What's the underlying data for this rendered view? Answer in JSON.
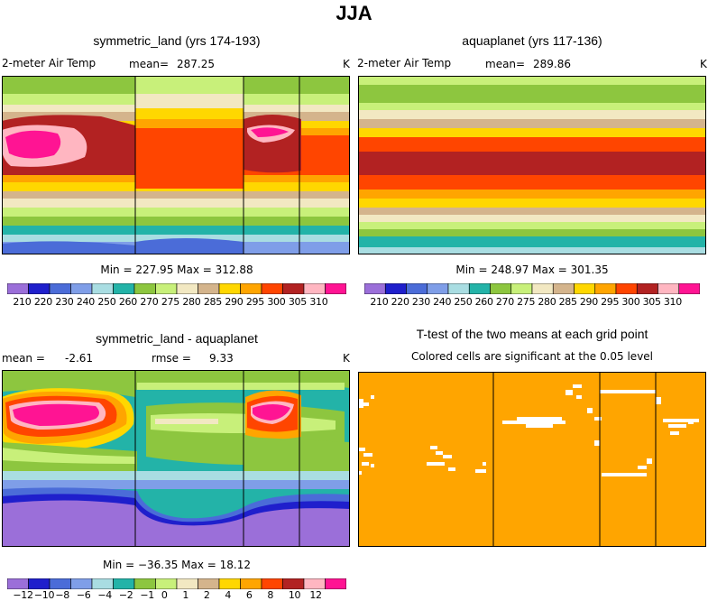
{
  "page_title": "JJA",
  "chart_data": [
    {
      "type": "heatmap",
      "title": "symmetric_land (yrs 174-193)",
      "variable_label": "2-meter Air Temp",
      "mean_label": "mean=",
      "mean_value": "287.25",
      "units": "K",
      "min_max": "Min = 227.95 Max = 312.88",
      "colorbar": {
        "levels": [
          "210",
          "220",
          "230",
          "240",
          "250",
          "260",
          "270",
          "275",
          "280",
          "285",
          "290",
          "295",
          "300",
          "305",
          "310"
        ],
        "colors": [
          "#9b6fd9",
          "#1f1fcc",
          "#4b6cd8",
          "#7f9ee8",
          "#a9dde2",
          "#23b3a8",
          "#8dc63f",
          "#c8f07a",
          "#f2e8c2",
          "#d4b48c",
          "#ffd700",
          "#ffa500",
          "#ff4500",
          "#b22222",
          "#ffb6c1",
          "#ff1493"
        ]
      },
      "description_bands": [
        "light-green top band",
        "hot red/pink continents in northern mid-latitudes",
        "orange tropics",
        "teal/blue southern high latitudes"
      ]
    },
    {
      "type": "heatmap",
      "title": "aquaplanet (yrs 117-136)",
      "variable_label": "2-meter Air Temp",
      "mean_label": "mean=",
      "mean_value": "289.86",
      "units": "K",
      "min_max": "Min = 248.97 Max = 301.35",
      "colorbar": {
        "levels": [
          "210",
          "220",
          "230",
          "240",
          "250",
          "260",
          "270",
          "275",
          "280",
          "285",
          "290",
          "295",
          "300",
          "305",
          "310"
        ]
      }
    },
    {
      "type": "heatmap",
      "title": "symmetric_land - aquaplanet",
      "mean_label": "mean =",
      "mean_value": "-2.61",
      "rmse_label": "rmse =",
      "rmse_value": "9.33",
      "units": "K",
      "min_max": "Min = −36.35 Max =  18.12",
      "colorbar": {
        "levels": [
          "−12",
          "−10",
          "−8",
          "−6",
          "−4",
          "−2",
          "−1",
          "0",
          "1",
          "2",
          "4",
          "6",
          "8",
          "10",
          "12"
        ],
        "colors": [
          "#9b6fd9",
          "#1f1fcc",
          "#4b6cd8",
          "#7f9ee8",
          "#a9dde2",
          "#23b3a8",
          "#8dc63f",
          "#c8f07a",
          "#f2e8c2",
          "#d4b48c",
          "#ffd700",
          "#ffa500",
          "#ff4500",
          "#b22222",
          "#ffb6c1",
          "#ff1493"
        ]
      }
    },
    {
      "type": "heatmap",
      "title": "T-test of the two means at each grid point",
      "subtitle": "Colored cells are significant at the 0.05 level",
      "fill_color": "#ffa500"
    }
  ]
}
